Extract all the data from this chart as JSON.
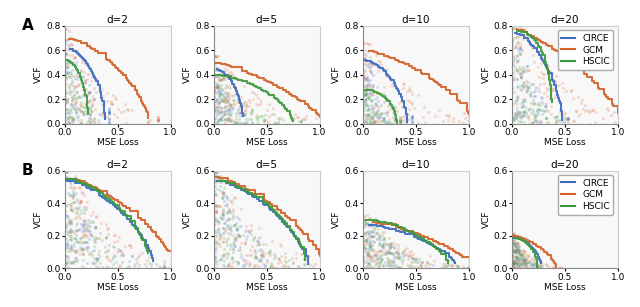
{
  "rows": 2,
  "cols": 4,
  "row_labels": [
    "A",
    "B"
  ],
  "col_titles": [
    "d=2",
    "d=5",
    "d=10",
    "d=20"
  ],
  "methods": [
    "CIRCE",
    "GCM",
    "HSCIC"
  ],
  "colors": {
    "CIRCE": "#3a6bbf",
    "GCM": "#d4622a",
    "HSCIC": "#3a9a3a"
  },
  "xlabel": "MSE Loss",
  "ylabel": "VCF",
  "row_A_ylim": [
    0.0,
    0.8
  ],
  "row_B_ylim": [
    0.0,
    0.6
  ],
  "xlim": [
    0.0,
    1.0
  ],
  "row_A_yticks": [
    0.0,
    0.2,
    0.4,
    0.6,
    0.8
  ],
  "row_B_yticks": [
    0.0,
    0.2,
    0.4,
    0.6
  ],
  "xticks": [
    0.0,
    0.5,
    1.0
  ],
  "legend_labels": [
    "CIRCE",
    "GCM",
    "HSCIC"
  ],
  "figsize": [
    6.4,
    3.07
  ],
  "dpi": 100
}
